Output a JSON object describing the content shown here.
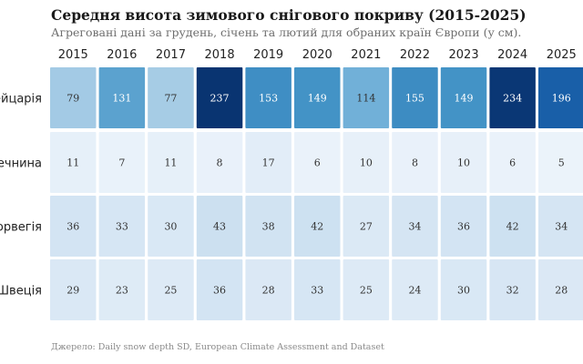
{
  "chart_data": {
    "type": "heatmap",
    "title": "Середня висота зимового снігового покриву (2015-2025)",
    "subtitle": "Агреговані дані за грудень, січень та лютий для обраних країн Європи (у см).",
    "source": "Джерело: Daily snow depth SD, European Climate Assessment and Dataset",
    "x_categories": [
      "2015",
      "2016",
      "2017",
      "2018",
      "2019",
      "2020",
      "2021",
      "2022",
      "2023",
      "2024",
      "2025"
    ],
    "y_categories": [
      "Швейцарія",
      "Чечнина",
      "Норвегія",
      "Швеція"
    ],
    "values": [
      [
        79,
        131,
        77,
        237,
        153,
        149,
        114,
        155,
        149,
        234,
        196
      ],
      [
        11,
        7,
        11,
        8,
        17,
        6,
        10,
        8,
        10,
        6,
        5
      ],
      [
        36,
        33,
        30,
        43,
        38,
        42,
        27,
        34,
        36,
        42,
        34
      ],
      [
        29,
        23,
        25,
        36,
        28,
        33,
        25,
        24,
        30,
        32,
        28
      ]
    ],
    "color_scale": [
      "#f0f6fc",
      "#dae8f5",
      "#b6d4e9",
      "#7cb7dc",
      "#4393c6",
      "#1a62ab",
      "#08316d"
    ],
    "value_range": [
      0,
      240
    ]
  }
}
